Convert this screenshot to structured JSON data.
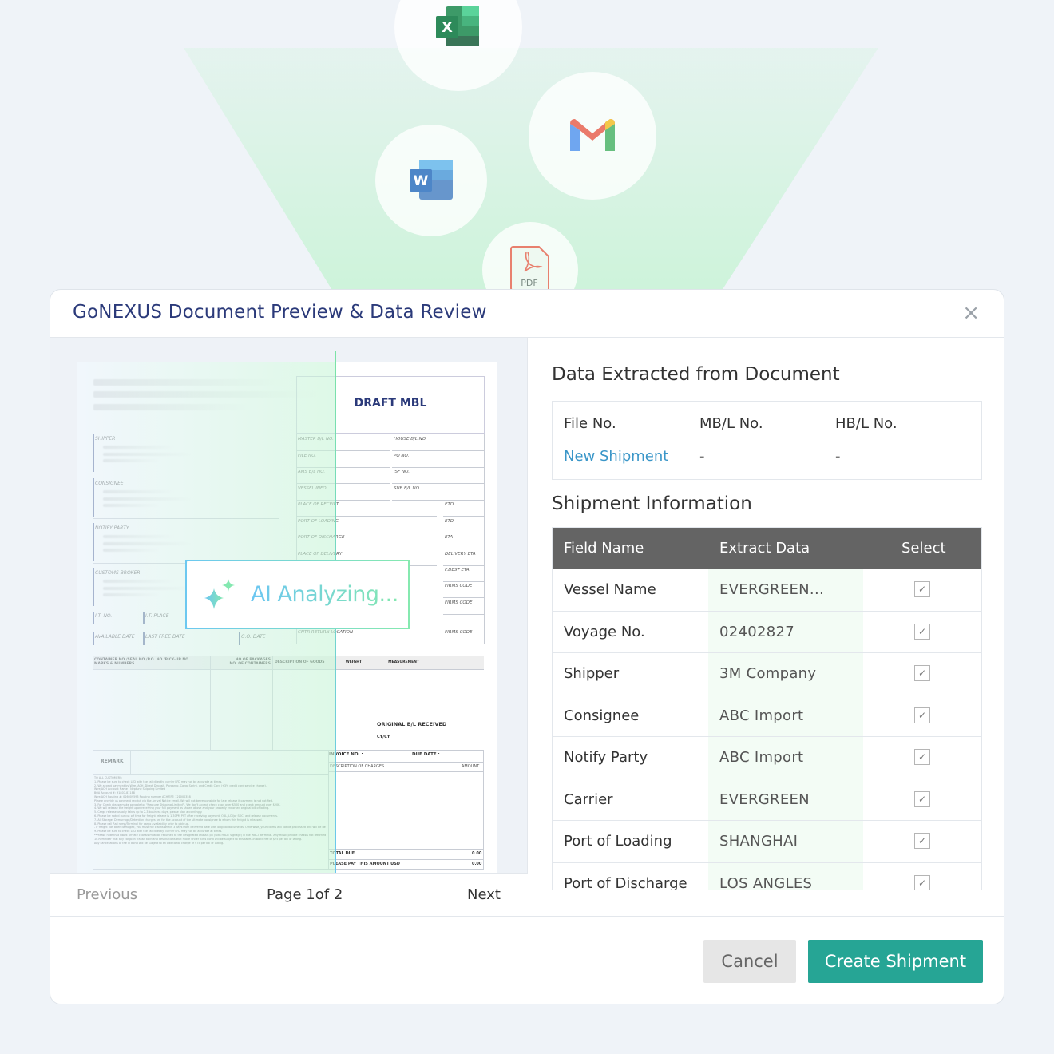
{
  "icons": [
    "excel-icon",
    "gmail-icon",
    "word-icon",
    "pdf-icon"
  ],
  "pdf_label": "PDF",
  "excel_letter": "X",
  "word_letter": "W",
  "modal": {
    "title": "GoNEXUS Document Preview & Data Review",
    "close": "×"
  },
  "document": {
    "title": "DRAFT MBL",
    "left_labels": [
      "SHIPPER",
      "CONSIGNEE",
      "NOTIFY PARTY",
      "CUSTOMS BROKER"
    ],
    "small_labels": [
      "I.T. NO.",
      "I.T. PLACE",
      "AVAILABLE DATE",
      "LAST FREE DATE",
      "G.O. DATE"
    ],
    "right_labels": [
      "MASTER B/L NO.",
      "HOUSE B/L NO.",
      "FILE NO.",
      "PO NO.",
      "AMS B/L NO.",
      "ISF NO.",
      "VESSEL INFO.",
      "SUB B/L NO.",
      "PLACE OF RECEIPT",
      "ETD",
      "PORT OF LOADING",
      "ETD",
      "PORT OF DISCHARGE",
      "ETA",
      "PLACE OF DELIVERY",
      "DELIVERY ETA",
      "F.DEST ETA",
      "FIRMS CODE",
      "FIRMS CODE",
      "CNTR RETURN LOCATION",
      "FIRMS CODE"
    ],
    "cargo_headers": [
      "CONTAINER NO./SEAL NO./P.O. NO./PICK-UP NO.\nMARKS & NUMBERS",
      "NO.OF PACKAGES\nNO. OF CONTAINERS",
      "DESCRIPTION OF GOODS",
      "WEIGHT",
      "MEASUREMENT"
    ],
    "original_bl": "ORIGINAL B/L RECEIVED",
    "cycy": "CY/CY",
    "remark": "REMARK",
    "remark_lines": [
      "TO ALL CUSTOMERS:",
      "1. Please be sure to check LFD with the rail directly, carrier LFD may not be accurate at times.",
      "2. We accept payment by Wire, ACH, Direct Deposit, Paycargo, Cargo Sprint, and Credit Card (+3% credit card service charge).",
      "Wire/ACH Account Name : Neptune Shipping Limited",
      "BOA Account #: 91807-81188",
      "Wire/ACH Routing #: 026009593  Routing number ACH/EFT: 121000358",
      "Please provide us payment receipt via the Arrival Notice email. We will not be responsible for late release if payment is not notified.",
      "3. For Check please make payable to: \"Neptune Shipping Limited\" . We don't accept check copy over $500 and check amount over $20K.",
      "4. We will release the freight upon receiving your full payment as shown above and your properly endorsed original bill of lading.",
      "5. Cargo release usually takes up to 2-3 business days, please plan accordingly.",
      "6. Please be noted our cut off time for freight release is 1:30PM PST after receiving payment, OBL, LOI(or SOC) and release documents.",
      "7. All Storage, Demurrage/Detention charges are for the account of the ultimate consignee to whom this freight is released.",
      "8. Please call Rail ramp/Terminal for cargo availability prior to pick up.",
      "- If freight has been damaged, you must file claims within 3 days from delivered date with original documents. Otherwise, your claims will not be processed and will be declined.",
      "9. Please be sure to check LFD with the rail directly, carrier LFD may not be accurate at times.",
      "**Please note that HBDE private chassis must be returned to the designated chassis pit (with HBDE signage) in the WBCT terminal. Any HBDE private chassis not returned to the WBCT terminal without prior written approval may be subject to a chassis mis-delivery fee commensurate with the market rate of chassis recovery.**",
      "10.Reminder that any cargo in transit to inland destinations that move under ZIMs bond will be subject to this tariff--In Bond Fee of $75 per bill of lading.",
      "Any cancellations of the In Bond will be subject to an additional charge of $75 per bill of lading."
    ],
    "invoice_no": "INVOICE NO. :",
    "due_date": "DUE DATE :",
    "desc_charges": "DESCRIPTION OF CHARGES",
    "amount": "AMOUNT",
    "total_due": "TOTAL DUE",
    "total_due_value": "0.00",
    "please_pay": "PLEASE PAY THIS AMOUNT USD",
    "please_pay_value": "0.00"
  },
  "ai_status": "AI Analyzing...",
  "pager": {
    "previous": "Previous",
    "page": "Page 1of 2",
    "next": "Next"
  },
  "extracted": {
    "title": "Data Extracted from Document",
    "file_no_label": "File No.",
    "mbl_label": "MB/L No.",
    "hbl_label": "HB/L No.",
    "file_no_value": "New Shipment",
    "mbl_value": "-",
    "hbl_value": "-"
  },
  "shipment": {
    "title": "Shipment Information",
    "headers": [
      "Field Name",
      "Extract Data",
      "Select"
    ],
    "rows": [
      {
        "field": "Vessel Name",
        "value": "EVERGREEN...",
        "selected": true
      },
      {
        "field": "Voyage No.",
        "value": "02402827",
        "selected": true
      },
      {
        "field": "Shipper",
        "value": "3M Company",
        "selected": true
      },
      {
        "field": "Consignee",
        "value": "ABC Import",
        "selected": true
      },
      {
        "field": "Notify Party",
        "value": "ABC Import",
        "selected": true
      },
      {
        "field": "Carrier",
        "value": "EVERGREEN",
        "selected": true
      },
      {
        "field": "Port of Loading",
        "value": "SHANGHAI",
        "selected": true
      },
      {
        "field": "Port of Discharge",
        "value": "LOS ANGLES",
        "selected": true
      }
    ]
  },
  "footer": {
    "cancel": "Cancel",
    "create": "Create Shipment"
  },
  "colors": {
    "title": "#2b3a7a",
    "accent": "#26a595",
    "link": "#3a96c8",
    "header_row": "#646464"
  }
}
